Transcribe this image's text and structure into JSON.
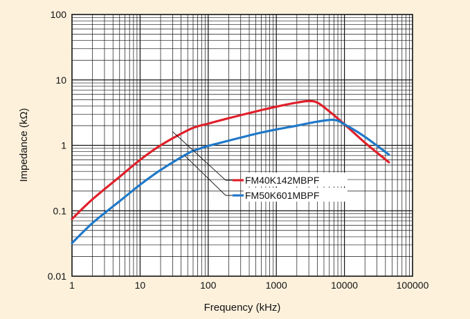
{
  "chart_data": {
    "type": "line",
    "xlabel": "Frequency (kHz)",
    "ylabel": "Impedance (kΩ)",
    "xscale": "log",
    "yscale": "log",
    "xlim": [
      1,
      100000
    ],
    "ylim": [
      0.01,
      100
    ],
    "grid": true,
    "legend_placement": "center, with leader lines to curves",
    "x_tick_labels": [
      "1",
      "10",
      "100",
      "1000",
      "10000",
      "100000"
    ],
    "y_tick_labels": [
      "100",
      "10",
      "1",
      "0.1",
      "0.01"
    ],
    "series": [
      {
        "name": "FM40K142MBPF",
        "color": "#e0202a",
        "x": [
          1,
          2,
          5,
          10,
          20,
          50,
          70,
          100,
          200,
          500,
          1000,
          2000,
          3000,
          4000,
          6000,
          10000,
          20000,
          45000
        ],
        "y": [
          0.075,
          0.15,
          0.33,
          0.6,
          1.0,
          1.7,
          1.95,
          2.15,
          2.6,
          3.3,
          3.9,
          4.5,
          4.75,
          4.5,
          3.3,
          2.1,
          1.1,
          0.55
        ]
      },
      {
        "name": "FM50K601MBPF",
        "color": "#1f78c8",
        "x": [
          1,
          2,
          5,
          10,
          20,
          50,
          70,
          100,
          200,
          500,
          1000,
          2000,
          4000,
          7000,
          10000,
          20000,
          45000
        ],
        "y": [
          0.032,
          0.065,
          0.14,
          0.25,
          0.42,
          0.75,
          0.87,
          0.98,
          1.18,
          1.5,
          1.75,
          2.0,
          2.3,
          2.45,
          2.1,
          1.35,
          0.72
        ]
      }
    ]
  }
}
